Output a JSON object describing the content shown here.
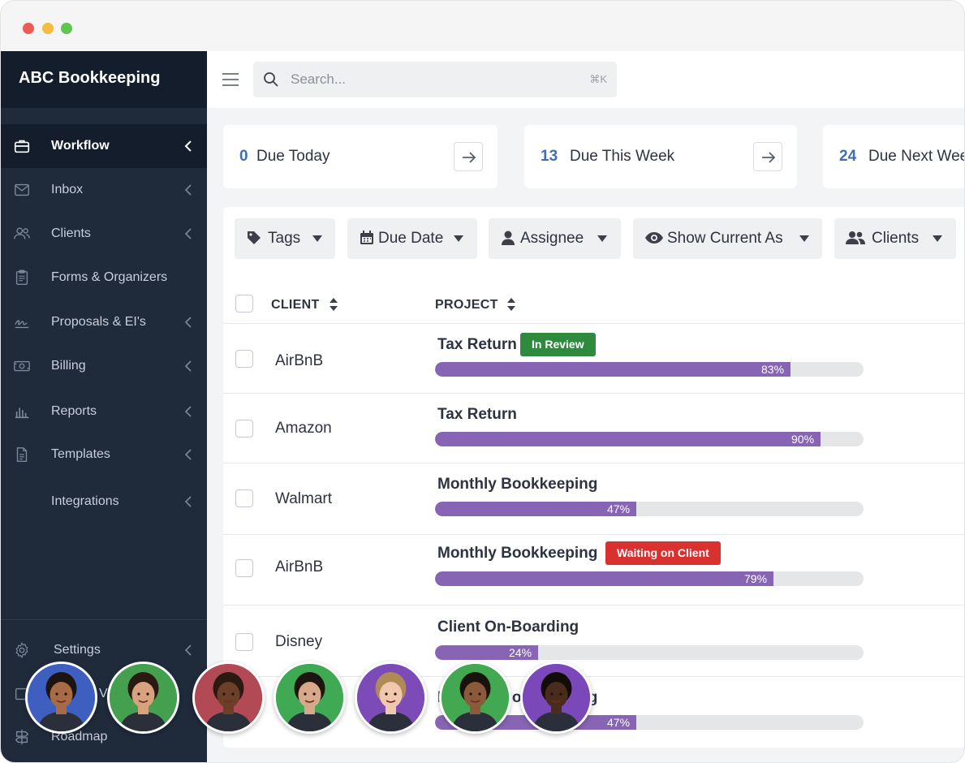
{
  "app": {
    "brand": "ABC Bookkeeping"
  },
  "sidebar": {
    "items": [
      {
        "label": "Workflow",
        "icon": "briefcase-icon",
        "active": true
      },
      {
        "label": "Inbox",
        "icon": "envelope-icon"
      },
      {
        "label": "Clients",
        "icon": "users-icon"
      },
      {
        "label": "Forms & Organizers",
        "icon": "clipboard-icon"
      },
      {
        "label": "Proposals & EI's",
        "icon": "signature-icon"
      },
      {
        "label": "Billing",
        "icon": "money-icon"
      },
      {
        "label": "Reports",
        "icon": "bar-chart-icon"
      },
      {
        "label": "Templates",
        "icon": "document-icon"
      },
      {
        "label": "Integrations",
        "icon": ""
      },
      {
        "label": "Settings",
        "icon": "gear-icon"
      },
      {
        "label": "V",
        "icon": "square-icon"
      },
      {
        "label": "Roadmap",
        "icon": "signpost-icon"
      }
    ]
  },
  "search": {
    "placeholder": "Search...",
    "shortcut": "⌘K"
  },
  "stats": [
    {
      "count": "0",
      "label": "Due Today"
    },
    {
      "count": "13",
      "label": "Due This Week"
    },
    {
      "count": "24",
      "label": "Due Next Week"
    }
  ],
  "filters": [
    {
      "label": "Tags",
      "icon": "tag-icon"
    },
    {
      "label": "Due Date",
      "icon": "calendar-icon"
    },
    {
      "label": "Assignee",
      "icon": "person-icon"
    },
    {
      "label": "Show Current As",
      "icon": "eye-icon"
    },
    {
      "label": "Clients",
      "icon": "users-icon"
    }
  ],
  "table": {
    "columns": [
      "CLIENT",
      "PROJECT"
    ],
    "rows": [
      {
        "client": "AirBnB",
        "project": "Tax Return",
        "badge": "In Review",
        "badge_color": "#2e8b3e",
        "progress": 83,
        "progress_label": "83%"
      },
      {
        "client": "Amazon",
        "project": "Tax Return",
        "badge": "",
        "progress": 90,
        "progress_label": "90%"
      },
      {
        "client": "Walmart",
        "project": "Monthly Bookkeeping",
        "badge": "",
        "progress": 47,
        "progress_label": "47%"
      },
      {
        "client": "AirBnB",
        "project": "Monthly Bookkeeping",
        "badge": "Waiting on Client",
        "badge_color": "#d93030",
        "progress": 79,
        "progress_label": "79%"
      },
      {
        "client": "Disney",
        "project": "Client On-Boarding",
        "badge": "",
        "progress": 24,
        "progress_label": "24%"
      },
      {
        "client": "",
        "project": "Monthly Bookkeeping",
        "badge": "",
        "progress": 47,
        "progress_label": "47%"
      }
    ]
  },
  "colors": {
    "sidebar_bg": "#1f2a3b",
    "sidebar_active": "#141d2b",
    "accent": "#3f6db8",
    "progress_fill": "#8765b4"
  },
  "avatars": [
    {
      "bg": "#3e5fbf",
      "skin": "#a86b45",
      "hair": "#1c1410"
    },
    {
      "bg": "#44a04f",
      "skin": "#d9a27e",
      "hair": "#2a1a12"
    },
    {
      "bg": "#b14a55",
      "skin": "#6b3f28",
      "hair": "#2b1a10"
    },
    {
      "bg": "#3fa954",
      "skin": "#d8a88a",
      "hair": "#1e1410"
    },
    {
      "bg": "#7c4bb8",
      "skin": "#f0c8ae",
      "hair": "#b08a55"
    },
    {
      "bg": "#43a852",
      "skin": "#8a5a3a",
      "hair": "#1a120c"
    },
    {
      "bg": "#7a48b8",
      "skin": "#4a2c1c",
      "hair": "#120c08"
    }
  ]
}
